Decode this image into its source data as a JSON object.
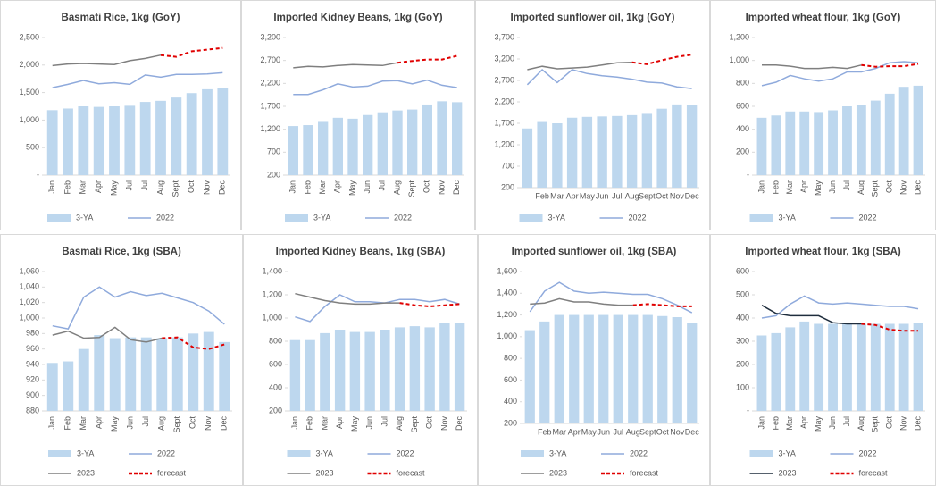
{
  "chart_data": [
    {
      "type": "bar_line",
      "title": "Basmati  Rice, 1kg (GoY)",
      "rotate_labels": true,
      "categories": [
        "Jan",
        "Feb",
        "Mar",
        "Apr",
        "May",
        "Jul",
        "Jul",
        "Aug",
        "Sept",
        "Oct",
        "Nov",
        "Dec"
      ],
      "ylim": [
        0,
        2500
      ],
      "yticks": [
        {
          "value": 0,
          "label": "-"
        },
        500,
        {
          "value": 1000,
          "label": "1,000"
        },
        {
          "value": 1500,
          "label": "1,500"
        },
        {
          "value": 2000,
          "label": "2,000"
        },
        {
          "value": 2500,
          "label": "2,500"
        }
      ],
      "series": [
        {
          "name": "3-YA",
          "kind": "bar",
          "color": "#bdd7ee",
          "values": [
            1180,
            1210,
            1250,
            1240,
            1250,
            1260,
            1330,
            1350,
            1410,
            1490,
            1560,
            1580
          ]
        },
        {
          "name": "2022",
          "kind": "line",
          "color": "#8faadc",
          "values": [
            1590,
            1650,
            1720,
            1660,
            1680,
            1650,
            1820,
            1780,
            1830,
            1830,
            1840,
            1860
          ]
        },
        {
          "kind": "line",
          "color": "#7f7f7f",
          "values": [
            1990,
            2020,
            2030,
            2020,
            2010,
            2080,
            2120,
            2180,
            null,
            null,
            null,
            null
          ]
        },
        {
          "kind": "line",
          "dashed": true,
          "color": "#e00000",
          "values": [
            null,
            null,
            null,
            null,
            null,
            null,
            null,
            2180,
            2150,
            2250,
            2280,
            2310
          ]
        }
      ]
    },
    {
      "type": "bar_line",
      "title": "Imported Kidney Beans, 1kg (GoY)",
      "rotate_labels": true,
      "categories": [
        "Jan",
        "Feb",
        "Mar",
        "Apr",
        "May",
        "Jun",
        "Jul",
        "Aug",
        "Sept",
        "Oct",
        "Nov",
        "Dec"
      ],
      "ylim": [
        200,
        3200
      ],
      "yticks": [
        200,
        700,
        {
          "value": 1200,
          "label": "1,200"
        },
        {
          "value": 1700,
          "label": "1,700"
        },
        {
          "value": 2200,
          "label": "2,200"
        },
        {
          "value": 2700,
          "label": "2,700"
        },
        {
          "value": 3200,
          "label": "3,200"
        }
      ],
      "series": [
        {
          "name": "3-YA",
          "kind": "bar",
          "color": "#bdd7ee",
          "values": [
            1270,
            1290,
            1360,
            1450,
            1430,
            1510,
            1570,
            1610,
            1630,
            1740,
            1810,
            1790
          ]
        },
        {
          "name": "2022",
          "kind": "line",
          "color": "#8faadc",
          "values": [
            1960,
            1960,
            2060,
            2190,
            2120,
            2140,
            2250,
            2260,
            2190,
            2270,
            2160,
            2110
          ]
        },
        {
          "kind": "line",
          "color": "#7f7f7f",
          "values": [
            2540,
            2570,
            2560,
            2590,
            2610,
            2600,
            2590,
            2650,
            null,
            null,
            null,
            null
          ]
        },
        {
          "kind": "line",
          "dashed": true,
          "color": "#e00000",
          "values": [
            null,
            null,
            null,
            null,
            null,
            null,
            null,
            2650,
            2690,
            2720,
            2720,
            2800
          ]
        }
      ]
    },
    {
      "type": "bar_line",
      "title": "Imported sunflower oil, 1kg (GoY)",
      "rotate_labels": false,
      "categories": [
        null,
        "Feb",
        "Mar",
        "Apr",
        "May",
        "Jun",
        "Jul",
        "Aug",
        "Sept",
        "Oct",
        "Nov",
        "Dec"
      ],
      "ylim": [
        200,
        3700
      ],
      "yticks": [
        200,
        700,
        {
          "value": 1200,
          "label": "1,200"
        },
        {
          "value": 1700,
          "label": "1,700"
        },
        {
          "value": 2200,
          "label": "2,200"
        },
        {
          "value": 2700,
          "label": "2,700"
        },
        {
          "value": 3200,
          "label": "3,200"
        },
        {
          "value": 3700,
          "label": "3,700"
        }
      ],
      "series": [
        {
          "name": "3-YA",
          "kind": "bar",
          "color": "#bdd7ee",
          "values": [
            1580,
            1730,
            1700,
            1830,
            1850,
            1860,
            1870,
            1890,
            1920,
            2040,
            2140,
            2130
          ]
        },
        {
          "name": "2022",
          "kind": "line",
          "color": "#8faadc",
          "values": [
            2600,
            2950,
            2650,
            2950,
            2860,
            2810,
            2780,
            2730,
            2660,
            2640,
            2550,
            2510
          ]
        },
        {
          "kind": "line",
          "color": "#7f7f7f",
          "values": [
            2950,
            3030,
            2970,
            2990,
            3010,
            3060,
            3110,
            3120,
            null,
            null,
            null,
            null
          ]
        },
        {
          "kind": "line",
          "dashed": true,
          "color": "#e00000",
          "values": [
            null,
            null,
            null,
            null,
            null,
            null,
            null,
            3120,
            3080,
            3170,
            3250,
            3300
          ]
        }
      ]
    },
    {
      "type": "bar_line",
      "title": "Imported wheat flour, 1kg (GoY)",
      "rotate_labels": true,
      "categories": [
        "Jan",
        "Feb",
        "Mar",
        "Apr",
        "May",
        "Jun",
        "Jul",
        "Aug",
        "Sept",
        "Oct",
        "Nov",
        "Dec"
      ],
      "ylim": [
        0,
        1200
      ],
      "yticks": [
        {
          "value": 0,
          "label": "-"
        },
        200,
        400,
        600,
        800,
        {
          "value": 1000,
          "label": "1,000"
        },
        {
          "value": 1200,
          "label": "1,200"
        }
      ],
      "series": [
        {
          "name": "3-YA",
          "kind": "bar",
          "color": "#bdd7ee",
          "values": [
            500,
            520,
            555,
            555,
            550,
            565,
            600,
            610,
            650,
            710,
            770,
            780
          ]
        },
        {
          "name": "2022",
          "kind": "line",
          "color": "#8faadc",
          "values": [
            780,
            810,
            870,
            840,
            820,
            840,
            900,
            900,
            930,
            980,
            990,
            980
          ]
        },
        {
          "kind": "line",
          "color": "#7f7f7f",
          "values": [
            960,
            960,
            950,
            930,
            930,
            940,
            930,
            960,
            null,
            null,
            null,
            null
          ]
        },
        {
          "kind": "line",
          "dashed": true,
          "color": "#e00000",
          "values": [
            null,
            null,
            null,
            null,
            null,
            null,
            null,
            960,
            945,
            950,
            950,
            970
          ]
        }
      ]
    },
    {
      "type": "bar_line",
      "title": "Basmati  Rice, 1kg (SBA)",
      "rotate_labels": true,
      "categories": [
        "Jan",
        "Feb",
        "Mar",
        "Apr",
        "May",
        "Jun",
        "Jul",
        "Aug",
        "Sept",
        "Oct",
        "Nov",
        "Dec"
      ],
      "ylim": [
        880,
        1060
      ],
      "yticks": [
        880,
        900,
        920,
        940,
        960,
        980,
        {
          "value": 1000,
          "label": "1,000"
        },
        {
          "value": 1020,
          "label": "1,020"
        },
        {
          "value": 1040,
          "label": "1,040"
        },
        {
          "value": 1060,
          "label": "1,060"
        }
      ],
      "series": [
        {
          "name": "3-YA",
          "kind": "bar",
          "color": "#bdd7ee",
          "values": [
            942,
            944,
            960,
            978,
            974,
            975,
            975,
            974,
            975,
            980,
            982,
            969
          ]
        },
        {
          "name": "2022",
          "kind": "line",
          "color": "#8faadc",
          "values": [
            990,
            986,
            1027,
            1040,
            1027,
            1034,
            1029,
            1032,
            1026,
            1020,
            1009,
            992
          ]
        },
        {
          "name": "2023",
          "kind": "line",
          "color": "#7f7f7f",
          "values": [
            978,
            983,
            974,
            975,
            988,
            972,
            969,
            974,
            null,
            null,
            null,
            null
          ]
        },
        {
          "name": "forecast",
          "kind": "line",
          "dashed": true,
          "color": "#e00000",
          "values": [
            null,
            null,
            null,
            null,
            null,
            null,
            null,
            974,
            975,
            962,
            960,
            966
          ]
        }
      ]
    },
    {
      "type": "bar_line",
      "title": "Imported Kidney Beans, 1kg (SBA)",
      "rotate_labels": true,
      "categories": [
        "Jan",
        "Feb",
        "Mar",
        "Apr",
        "May",
        "Jun",
        "Jul",
        "Aug",
        "Sept",
        "Oct",
        "Nov",
        "Dec"
      ],
      "ylim": [
        200,
        1400
      ],
      "yticks": [
        200,
        400,
        600,
        800,
        {
          "value": 1000,
          "label": "1,000"
        },
        {
          "value": 1200,
          "label": "1,200"
        },
        {
          "value": 1400,
          "label": "1,400"
        }
      ],
      "series": [
        {
          "name": "3-YA",
          "kind": "bar",
          "color": "#bdd7ee",
          "values": [
            810,
            810,
            870,
            900,
            880,
            880,
            900,
            920,
            930,
            920,
            960,
            960
          ]
        },
        {
          "name": "2022",
          "kind": "line",
          "color": "#8faadc",
          "values": [
            1010,
            970,
            1100,
            1200,
            1140,
            1140,
            1130,
            1160,
            1160,
            1140,
            1160,
            1120
          ]
        },
        {
          "name": "2023",
          "kind": "line",
          "color": "#7f7f7f",
          "values": [
            1210,
            1180,
            1150,
            1130,
            1120,
            1120,
            1130,
            1130,
            null,
            null,
            null,
            null
          ]
        },
        {
          "name": "forecast",
          "kind": "line",
          "dashed": true,
          "color": "#e00000",
          "values": [
            null,
            null,
            null,
            null,
            null,
            null,
            null,
            1130,
            1110,
            1100,
            1110,
            1120
          ]
        }
      ]
    },
    {
      "type": "bar_line",
      "title": "Imported sunflower oil, 1kg (SBA)",
      "rotate_labels": false,
      "categories": [
        null,
        "Feb",
        "Mar",
        "Apr",
        "May",
        "Jun",
        "Jul",
        "Aug",
        "Sept",
        "Oct",
        "Nov",
        "Dec"
      ],
      "ylim": [
        200,
        1600
      ],
      "yticks": [
        200,
        400,
        600,
        800,
        {
          "value": 1000,
          "label": "1,000"
        },
        {
          "value": 1200,
          "label": "1,200"
        },
        {
          "value": 1400,
          "label": "1,400"
        },
        {
          "value": 1600,
          "label": "1,600"
        }
      ],
      "series": [
        {
          "name": "3-YA",
          "kind": "bar",
          "color": "#bdd7ee",
          "values": [
            1060,
            1140,
            1200,
            1200,
            1200,
            1200,
            1200,
            1200,
            1200,
            1190,
            1180,
            1130
          ]
        },
        {
          "name": "2022",
          "kind": "line",
          "color": "#8faadc",
          "values": [
            1230,
            1420,
            1500,
            1420,
            1400,
            1410,
            1400,
            1390,
            1390,
            1350,
            1290,
            1220
          ]
        },
        {
          "name": "2023",
          "kind": "line",
          "color": "#7f7f7f",
          "values": [
            1300,
            1310,
            1350,
            1320,
            1320,
            1300,
            1290,
            1290,
            null,
            null,
            null,
            null
          ]
        },
        {
          "name": "forecast",
          "kind": "line",
          "dashed": true,
          "color": "#e00000",
          "values": [
            null,
            null,
            null,
            null,
            null,
            null,
            null,
            1290,
            1300,
            1290,
            1280,
            1280
          ]
        }
      ]
    },
    {
      "type": "bar_line",
      "title": "Imported wheat flour, 1kg (SBA)",
      "rotate_labels": true,
      "categories": [
        "Jan",
        "Feb",
        "Mar",
        "Apr",
        "May",
        "Jun",
        "Jul",
        "Aug",
        "Sept",
        "Oct",
        "Nov",
        "Dec"
      ],
      "ylim": [
        0,
        600
      ],
      "yticks": [
        {
          "value": 0,
          "label": "-"
        },
        100,
        200,
        300,
        400,
        500,
        600
      ],
      "series": [
        {
          "name": "3-YA",
          "kind": "bar",
          "color": "#bdd7ee",
          "values": [
            325,
            335,
            360,
            385,
            375,
            375,
            375,
            375,
            375,
            375,
            375,
            380
          ]
        },
        {
          "name": "2022",
          "kind": "line",
          "color": "#8faadc",
          "values": [
            400,
            410,
            460,
            495,
            465,
            460,
            465,
            460,
            455,
            450,
            450,
            440
          ]
        },
        {
          "name": "2023",
          "kind": "line",
          "color": "#1f2d3d",
          "values": [
            455,
            420,
            410,
            410,
            410,
            380,
            375,
            375,
            null,
            null,
            null,
            null
          ]
        },
        {
          "name": "forecast",
          "kind": "line",
          "dashed": true,
          "color": "#e00000",
          "values": [
            null,
            null,
            null,
            null,
            null,
            null,
            null,
            375,
            370,
            350,
            345,
            345
          ]
        }
      ]
    }
  ]
}
